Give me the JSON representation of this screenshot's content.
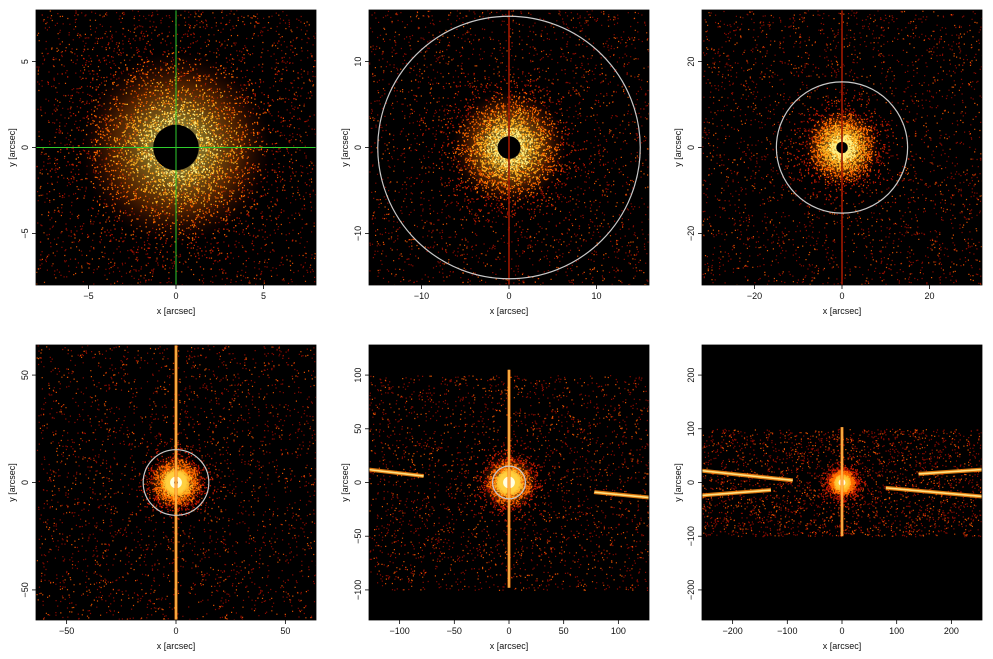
{
  "chart_data": [
    {
      "type": "heatmap",
      "xlabel": "x [arcsec]",
      "ylabel": "y [arcsec]",
      "xlim": [
        -8,
        8
      ],
      "ylim": [
        -8,
        8
      ],
      "xticks": [
        -5,
        0,
        5
      ],
      "yticks": [
        -5,
        0,
        5
      ],
      "grid": false,
      "colormap": [
        "#000000",
        "#8b0000",
        "#ff5000",
        "#ffc000",
        "#ffffe0"
      ],
      "core_hole_radius": 1.3,
      "halo_radius": 2.5,
      "crosshair": {
        "x": 0,
        "y": 0,
        "color": "#2ecc2e"
      },
      "circle": null,
      "streaks": []
    },
    {
      "type": "heatmap",
      "xlabel": "x [arcsec]",
      "ylabel": "y [arcsec]",
      "xlim": [
        -16,
        16
      ],
      "ylim": [
        -16,
        16
      ],
      "xticks": [
        -10,
        0,
        10
      ],
      "yticks": [
        -10,
        0,
        10
      ],
      "grid": false,
      "colormap": [
        "#000000",
        "#8b0000",
        "#ff5000",
        "#ffc000",
        "#ffffe0"
      ],
      "core_hole_radius": 1.3,
      "halo_radius": 3,
      "crosshair": null,
      "circle": {
        "cx": 0,
        "cy": 0,
        "r": 15,
        "color": "#c8c8c8"
      },
      "streaks": [
        {
          "orientation": "vertical",
          "x": 0,
          "y_extent": [
            -16,
            16
          ]
        }
      ]
    },
    {
      "type": "heatmap",
      "xlabel": "x [arcsec]",
      "ylabel": "y [arcsec]",
      "xlim": [
        -32,
        32
      ],
      "ylim": [
        -32,
        32
      ],
      "xticks": [
        -20,
        0,
        20
      ],
      "yticks": [
        -20,
        0,
        20
      ],
      "grid": false,
      "colormap": [
        "#000000",
        "#8b0000",
        "#ff5000",
        "#ffc000",
        "#ffffe0"
      ],
      "core_hole_radius": 1.3,
      "halo_radius": 4,
      "crosshair": null,
      "circle": {
        "cx": 0,
        "cy": 0,
        "r": 15,
        "color": "#c8c8c8"
      },
      "streaks": [
        {
          "orientation": "vertical",
          "x": 0,
          "y_extent": [
            -32,
            32
          ]
        }
      ]
    },
    {
      "type": "heatmap",
      "xlabel": "x [arcsec]",
      "ylabel": "y [arcsec]",
      "xlim": [
        -64,
        64
      ],
      "ylim": [
        -64,
        64
      ],
      "xticks": [
        -50,
        0,
        50
      ],
      "yticks": [
        -50,
        0,
        50
      ],
      "grid": false,
      "colormap": [
        "#000000",
        "#8b0000",
        "#ff5000",
        "#ffc000",
        "#ffffe0"
      ],
      "core_hole_radius": 0.8,
      "halo_radius": 6,
      "crosshair": null,
      "circle": {
        "cx": 0,
        "cy": 0,
        "r": 15,
        "color": "#c8c8c8"
      },
      "streaks": [
        {
          "orientation": "vertical",
          "x": 0,
          "y_extent": [
            -64,
            64
          ]
        }
      ]
    },
    {
      "type": "heatmap",
      "xlabel": "x [arcsec]",
      "ylabel": "y [arcsec]",
      "xlim": [
        -128,
        128
      ],
      "ylim": [
        -128,
        128
      ],
      "xticks": [
        -100,
        -50,
        0,
        50,
        100
      ],
      "yticks": [
        -100,
        -50,
        0,
        50,
        100
      ],
      "grid": false,
      "colormap": [
        "#000000",
        "#8b0000",
        "#ff5000",
        "#ffc000",
        "#ffffe0"
      ],
      "core_hole_radius": 0.5,
      "halo_radius": 12,
      "crosshair": null,
      "circle": {
        "cx": 0,
        "cy": 0,
        "r": 15,
        "color": "#c8c8c8"
      },
      "field_y_extent": [
        -100,
        100
      ],
      "streaks": [
        {
          "orientation": "vertical",
          "x": 0,
          "y_extent": [
            -98,
            105
          ]
        },
        {
          "orientation": "slanted",
          "from": [
            -128,
            12
          ],
          "to": [
            -78,
            6
          ]
        },
        {
          "orientation": "slanted",
          "from": [
            78,
            -9
          ],
          "to": [
            128,
            -14
          ]
        }
      ]
    },
    {
      "type": "heatmap",
      "xlabel": "x [arcsec]",
      "ylabel": "y [arcsec]",
      "xlim": [
        -256,
        256
      ],
      "ylim": [
        -256,
        256
      ],
      "xticks": [
        -200,
        -100,
        0,
        100,
        200
      ],
      "yticks": [
        -200,
        -100,
        0,
        100,
        200
      ],
      "grid": false,
      "colormap": [
        "#000000",
        "#8b0000",
        "#ff5000",
        "#ffc000",
        "#ffffe0"
      ],
      "core_hole_radius": 0,
      "halo_radius": 14,
      "crosshair": null,
      "circle": null,
      "field_y_extent": [
        -100,
        100
      ],
      "streaks": [
        {
          "orientation": "vertical",
          "x": 0,
          "y_extent": [
            -100,
            103
          ]
        },
        {
          "orientation": "slanted",
          "from": [
            -256,
            22
          ],
          "to": [
            -90,
            4
          ]
        },
        {
          "orientation": "slanted",
          "from": [
            -256,
            -24
          ],
          "to": [
            -130,
            -14
          ]
        },
        {
          "orientation": "slanted",
          "from": [
            140,
            16
          ],
          "to": [
            256,
            24
          ]
        },
        {
          "orientation": "slanted",
          "from": [
            80,
            -10
          ],
          "to": [
            256,
            -26
          ]
        }
      ]
    }
  ]
}
